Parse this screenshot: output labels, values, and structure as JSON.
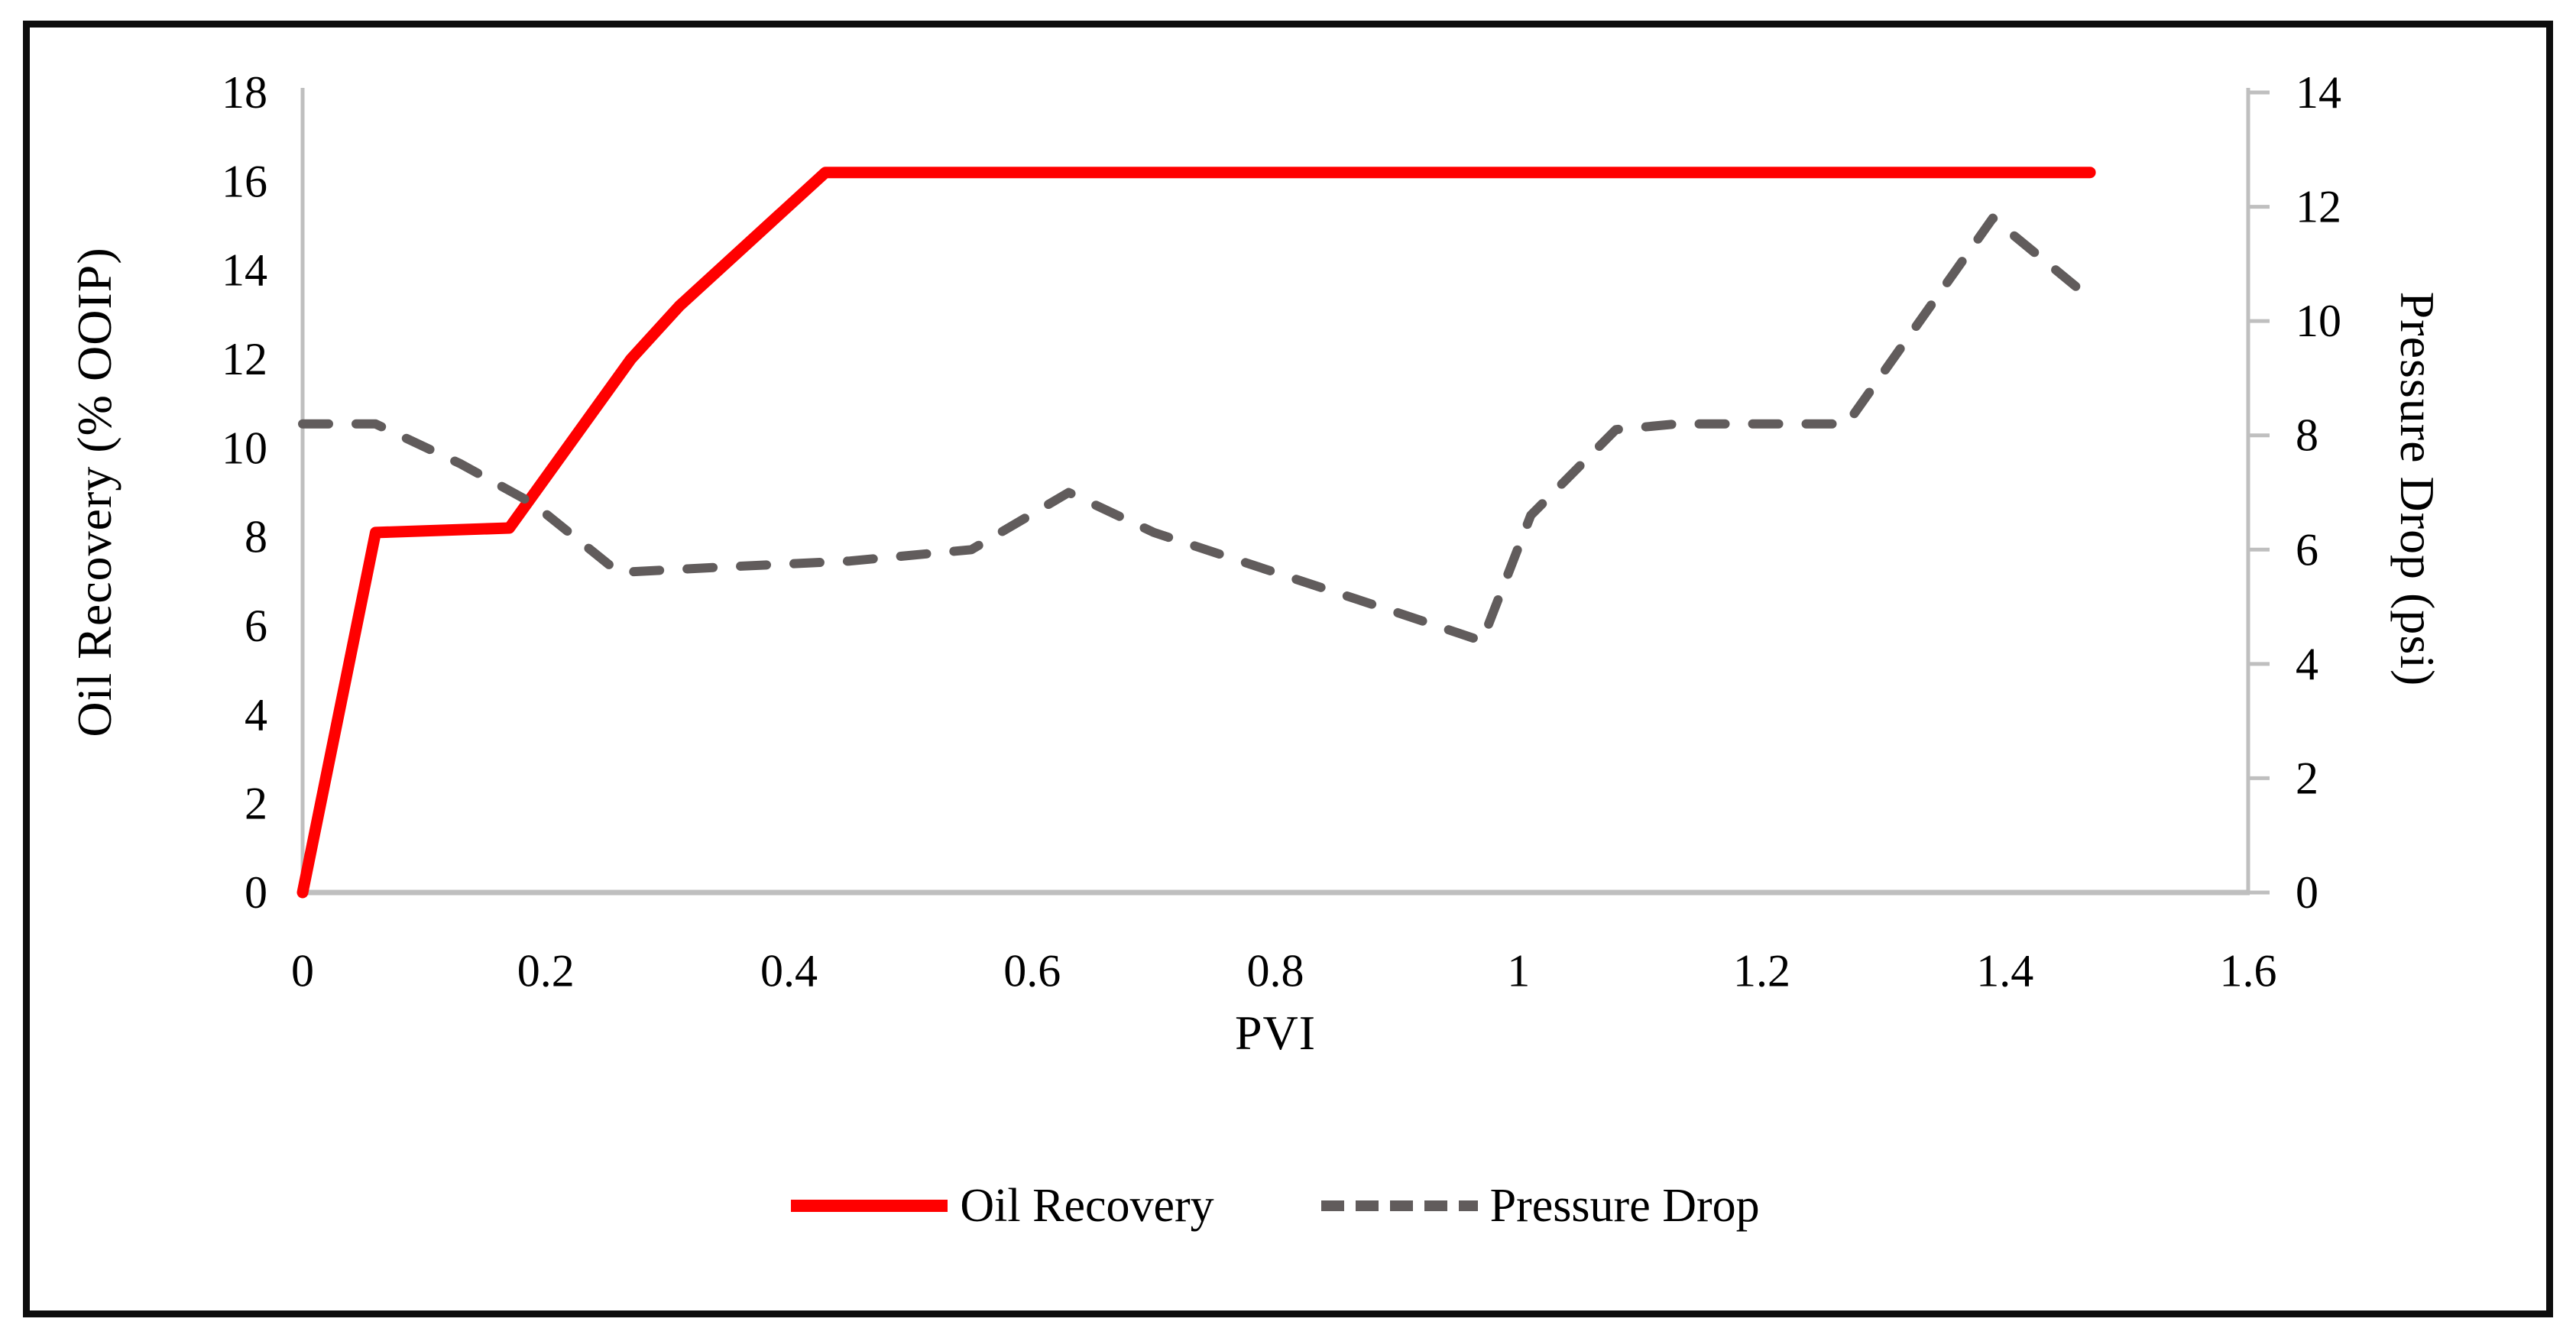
{
  "figure": {
    "background": "#ffffff",
    "frame_border_color": "#0d0d0d"
  },
  "chart_data": {
    "type": "line",
    "title": "",
    "xlabel": "PVI",
    "ylabel_left": "Oil Recovery (% OOIP)",
    "ylabel_right": "Pressure Drop (psi)",
    "xlim": [
      0,
      1.6
    ],
    "ylim_left": [
      0,
      18
    ],
    "ylim_right": [
      0,
      14
    ],
    "x_ticks": [
      0,
      0.2,
      0.4,
      0.6,
      0.8,
      1,
      1.2,
      1.4,
      1.6
    ],
    "x_tick_labels": [
      "0",
      "0.2",
      "0.4",
      "0.6",
      "0.8",
      "1",
      "1.2",
      "1.4",
      "1.6"
    ],
    "y_ticks_left": [
      0,
      2,
      4,
      6,
      8,
      10,
      12,
      14,
      16,
      18
    ],
    "y_tick_labels_left": [
      "0",
      "2",
      "4",
      "6",
      "8",
      "10",
      "12",
      "14",
      "16",
      "18"
    ],
    "y_ticks_right": [
      0,
      2,
      4,
      6,
      8,
      10,
      12,
      14
    ],
    "y_tick_labels_right": [
      "0",
      "2",
      "4",
      "6",
      "8",
      "10",
      "12",
      "14"
    ],
    "grid": false,
    "legend_position": "bottom-center",
    "axis_color": "#BFBFBF",
    "tick_text_color": "#000000",
    "series": [
      {
        "name": "Oil Recovery",
        "axis": "left",
        "color": "#FF0000",
        "style": "solid",
        "stroke_width": 15,
        "points": [
          [
            0,
            0
          ],
          [
            0.06,
            8.1
          ],
          [
            0.17,
            8.2
          ],
          [
            0.27,
            12.0
          ],
          [
            0.31,
            13.2
          ],
          [
            0.43,
            16.2
          ],
          [
            1.47,
            16.2
          ]
        ]
      },
      {
        "name": "Pressure Drop",
        "axis": "right",
        "color": "#615C5C",
        "style": "dashed",
        "stroke_width": 12,
        "points": [
          [
            0,
            8.2
          ],
          [
            0.06,
            8.2
          ],
          [
            0.13,
            7.5
          ],
          [
            0.19,
            6.8
          ],
          [
            0.26,
            5.6
          ],
          [
            0.35,
            5.7
          ],
          [
            0.45,
            5.8
          ],
          [
            0.55,
            6.0
          ],
          [
            0.63,
            7.0
          ],
          [
            0.7,
            6.3
          ],
          [
            0.8,
            5.6
          ],
          [
            0.9,
            4.9
          ],
          [
            0.97,
            4.4
          ],
          [
            1.01,
            6.6
          ],
          [
            1.08,
            8.1
          ],
          [
            1.13,
            8.2
          ],
          [
            1.27,
            8.2
          ],
          [
            1.39,
            11.8
          ],
          [
            1.47,
            10.4
          ]
        ]
      }
    ]
  },
  "legend": {
    "items": [
      {
        "label": "Oil Recovery"
      },
      {
        "label": "Pressure Drop"
      }
    ]
  }
}
